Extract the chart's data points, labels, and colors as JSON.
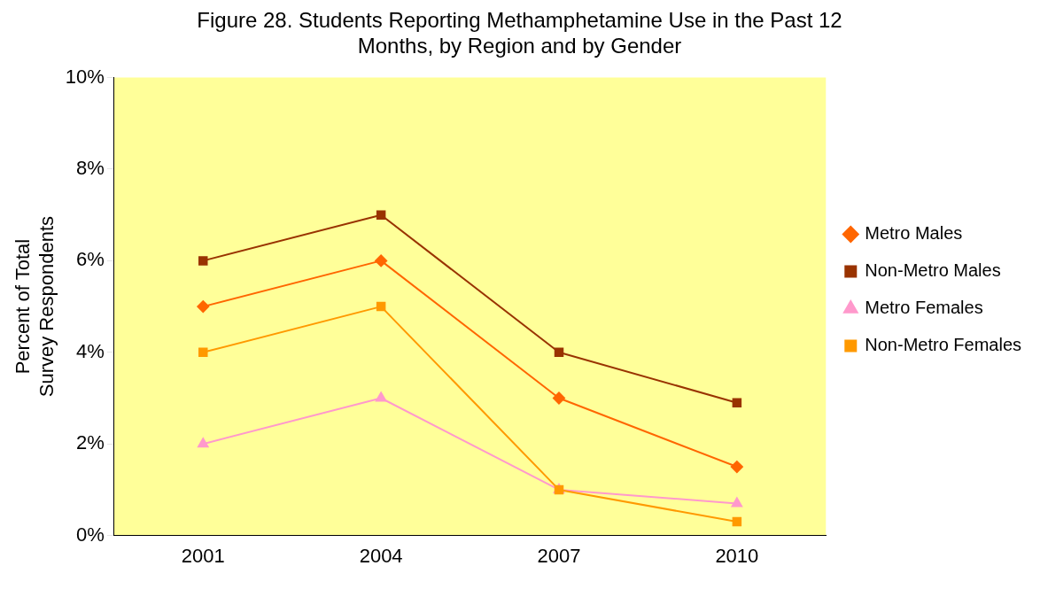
{
  "chart_data": {
    "type": "line",
    "title": "Figure 28. Students Reporting Methamphetamine Use in the Past 12 Months, by Region and by Gender",
    "ylabel": "Percent of Total Survey Respondents",
    "categories": [
      "2001",
      "2004",
      "2007",
      "2010"
    ],
    "series": [
      {
        "name": "Metro Males",
        "color": "#ff6600",
        "marker": "diamond",
        "values": [
          5,
          6,
          3,
          1.5
        ]
      },
      {
        "name": "Non-Metro Males",
        "color": "#993300",
        "marker": "square",
        "values": [
          6,
          7,
          4,
          2.9
        ]
      },
      {
        "name": "Metro Females",
        "color": "#ff99cc",
        "marker": "triangle",
        "values": [
          2,
          3,
          1,
          0.7
        ]
      },
      {
        "name": "Non-Metro Females",
        "color": "#ff9900",
        "marker": "square",
        "values": [
          4,
          5,
          1,
          0.3
        ]
      }
    ],
    "ylim": [
      0,
      10
    ],
    "yticks": [
      {
        "value": 0,
        "label": "0%"
      },
      {
        "value": 2,
        "label": "2%"
      },
      {
        "value": 4,
        "label": "4%"
      },
      {
        "value": 6,
        "label": "6%"
      },
      {
        "value": 8,
        "label": "8%"
      },
      {
        "value": 10,
        "label": "10%"
      }
    ],
    "legend": "right"
  }
}
